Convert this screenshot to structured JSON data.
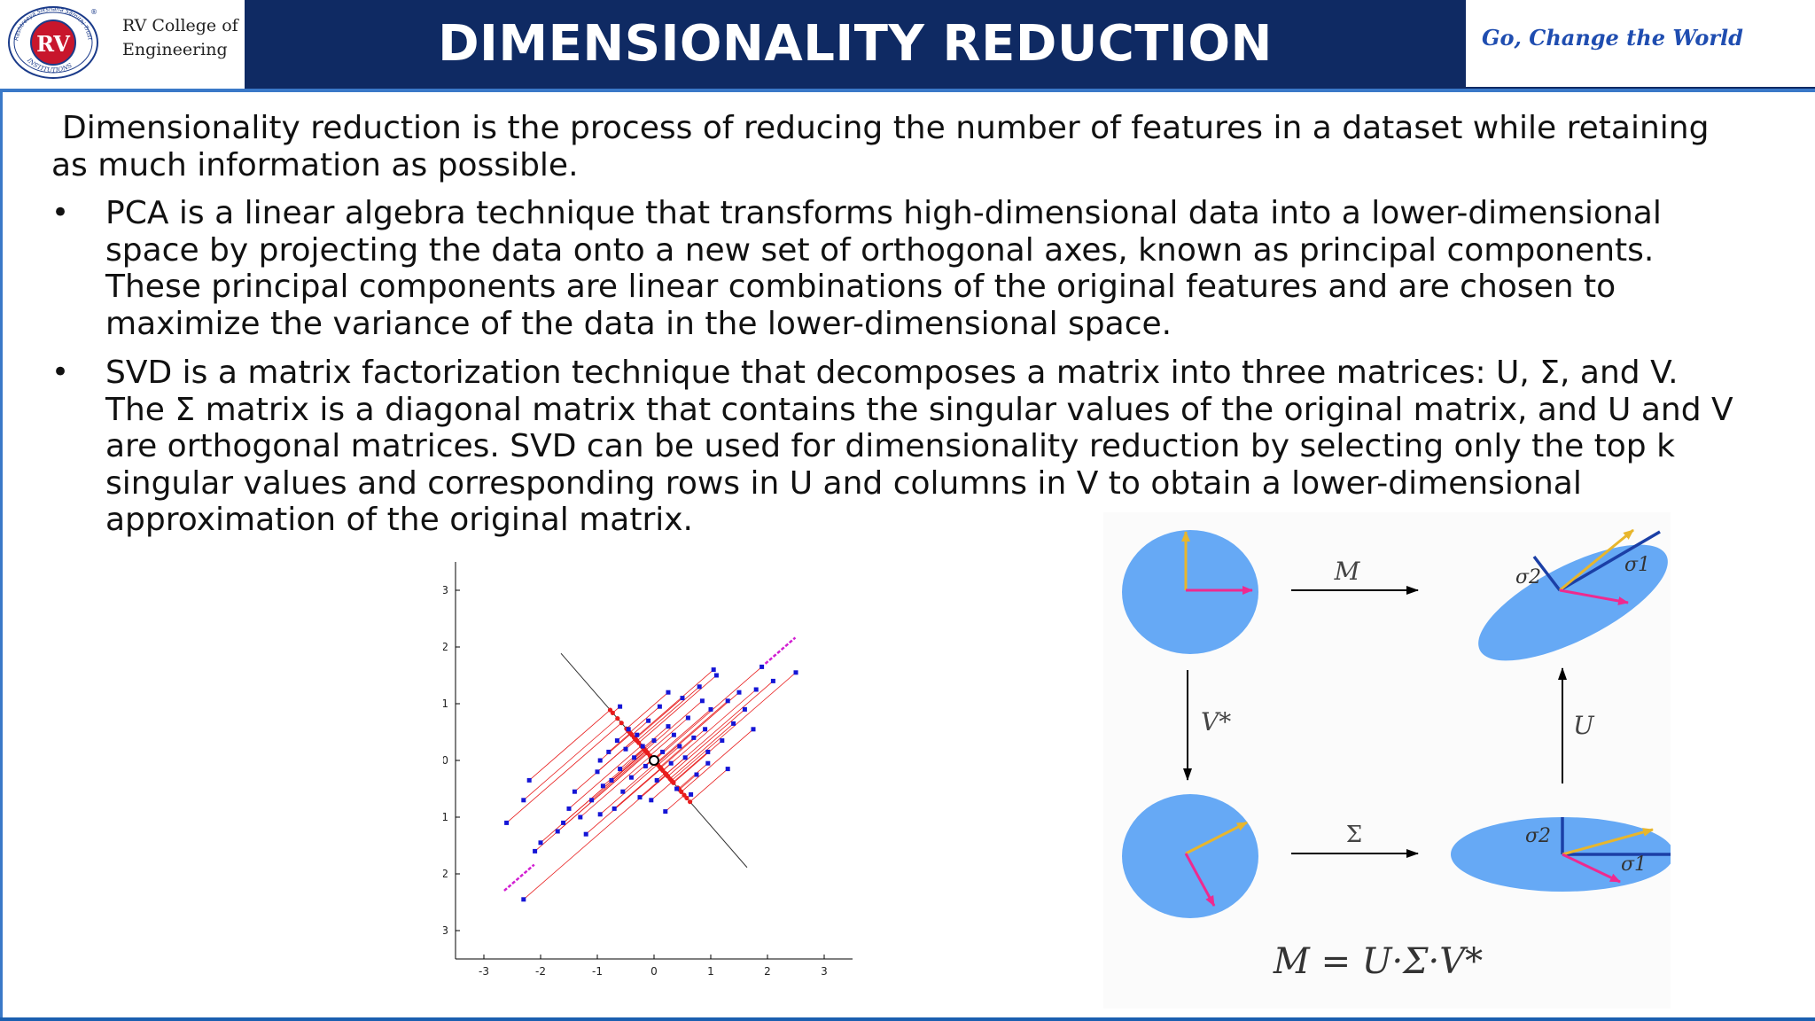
{
  "header": {
    "logo_initials": "RV",
    "logo_ring_top": "Rashtreeya Sikshana Samithi Trust",
    "logo_ring_bottom": "INSTITUTIONS",
    "college_line1": "RV College of",
    "college_line2": "Engineering",
    "title": "DIMENSIONALITY REDUCTION",
    "slogan": "Go, Change the World"
  },
  "body": {
    "intro": "Dimensionality reduction is the process of reducing the number of features in a dataset while retaining as much information as possible.",
    "bullets": [
      "PCA is a linear algebra technique that transforms high-dimensional data into a lower-dimensional space by projecting the data onto a new set of orthogonal axes, known as principal components. These principal components are linear combinations of the original features and are chosen to maximize the variance of the data in the lower-dimensional space.",
      "SVD is a matrix factorization technique that decomposes a matrix into three matrices: U, Σ, and V. The Σ matrix is a diagonal matrix that contains the singular values of the original matrix, and U and V are orthogonal matrices. SVD can be used for dimensionality reduction by selecting only the top k singular values and corresponding rows in U and columns in V to obtain a lower-dimensional approximation of the original matrix."
    ]
  },
  "pca_figure": {
    "x_ticks": [
      "-3",
      "-2",
      "-1",
      "0",
      "1",
      "2",
      "3"
    ],
    "y_ticks": [
      "3",
      "2",
      "1",
      "0",
      "-1",
      "-2",
      "-3"
    ]
  },
  "svd_figure": {
    "label_M": "M",
    "label_Vstar": "V*",
    "label_U": "U",
    "label_Sigma": "Σ",
    "sigma1": "σ1",
    "sigma2": "σ2",
    "equation": "M = U·Σ·V*"
  },
  "colors": {
    "header_bg": "#0f2a63",
    "accent": "#3a79c8",
    "slogan": "#1f4db0",
    "ellipse_fill": "#66a9f5",
    "arrow_yellow": "#e8b62c",
    "arrow_magenta": "#ee2a8f",
    "arrow_blue": "#1b3fa6",
    "pca_points": "#1515d6",
    "pca_proj": "#e81c1c"
  },
  "chart_data": {
    "type": "scatter",
    "title": "",
    "xlabel": "",
    "ylabel": "",
    "xlim": [
      -3.5,
      3.5
    ],
    "ylim": [
      -3.5,
      3.5
    ],
    "grid": false,
    "points": [
      [
        -2.6,
        -1.1
      ],
      [
        -2.2,
        -0.35
      ],
      [
        -2.3,
        -0.7
      ],
      [
        -2.1,
        -1.6
      ],
      [
        -2.0,
        -1.45
      ],
      [
        -2.3,
        -2.45
      ],
      [
        -1.6,
        -1.1
      ],
      [
        -1.5,
        -0.85
      ],
      [
        -1.4,
        -0.55
      ],
      [
        -1.3,
        -1.0
      ],
      [
        -1.2,
        -1.3
      ],
      [
        -1.1,
        -0.7
      ],
      [
        -1.0,
        -0.2
      ],
      [
        -0.95,
        0.0
      ],
      [
        -0.9,
        -0.45
      ],
      [
        -0.8,
        0.15
      ],
      [
        -0.75,
        -0.35
      ],
      [
        -0.7,
        -0.85
      ],
      [
        -0.65,
        0.35
      ],
      [
        -0.6,
        -0.15
      ],
      [
        -0.55,
        -0.55
      ],
      [
        -0.5,
        0.2
      ],
      [
        -0.45,
        0.55
      ],
      [
        -0.4,
        -0.3
      ],
      [
        -0.35,
        0.05
      ],
      [
        -0.3,
        0.45
      ],
      [
        -0.25,
        -0.65
      ],
      [
        -0.2,
        0.25
      ],
      [
        -0.15,
        -0.1
      ],
      [
        -0.1,
        0.7
      ],
      [
        0.0,
        0.35
      ],
      [
        0.05,
        -0.35
      ],
      [
        0.1,
        0.95
      ],
      [
        0.15,
        0.15
      ],
      [
        0.2,
        -0.9
      ],
      [
        0.25,
        0.6
      ],
      [
        0.3,
        -0.05
      ],
      [
        0.35,
        0.45
      ],
      [
        0.4,
        -0.5
      ],
      [
        0.45,
        0.25
      ],
      [
        0.5,
        1.1
      ],
      [
        0.55,
        0.05
      ],
      [
        0.6,
        0.75
      ],
      [
        0.7,
        0.4
      ],
      [
        0.75,
        -0.25
      ],
      [
        0.8,
        1.3
      ],
      [
        0.9,
        0.55
      ],
      [
        0.95,
        0.15
      ],
      [
        1.0,
        0.9
      ],
      [
        1.1,
        1.5
      ],
      [
        1.2,
        0.35
      ],
      [
        1.3,
        1.05
      ],
      [
        1.4,
        0.65
      ],
      [
        1.5,
        1.2
      ],
      [
        1.3,
        -0.15
      ],
      [
        1.6,
        0.9
      ],
      [
        1.8,
        1.25
      ],
      [
        1.9,
        1.65
      ],
      [
        2.1,
        1.4
      ],
      [
        2.5,
        1.55
      ],
      [
        1.05,
        1.6
      ],
      [
        0.85,
        1.05
      ],
      [
        -0.05,
        -0.7
      ],
      [
        0.65,
        -0.6
      ],
      [
        -1.7,
        -1.25
      ],
      [
        -0.6,
        0.95
      ],
      [
        0.95,
        -0.05
      ],
      [
        1.75,
        0.55
      ],
      [
        0.25,
        1.2
      ],
      [
        -0.95,
        -0.95
      ]
    ],
    "principal_axis": {
      "angle_deg": 41,
      "projection_span": [
        -1.15,
        1.0
      ]
    },
    "mean": [
      0,
      0
    ]
  }
}
